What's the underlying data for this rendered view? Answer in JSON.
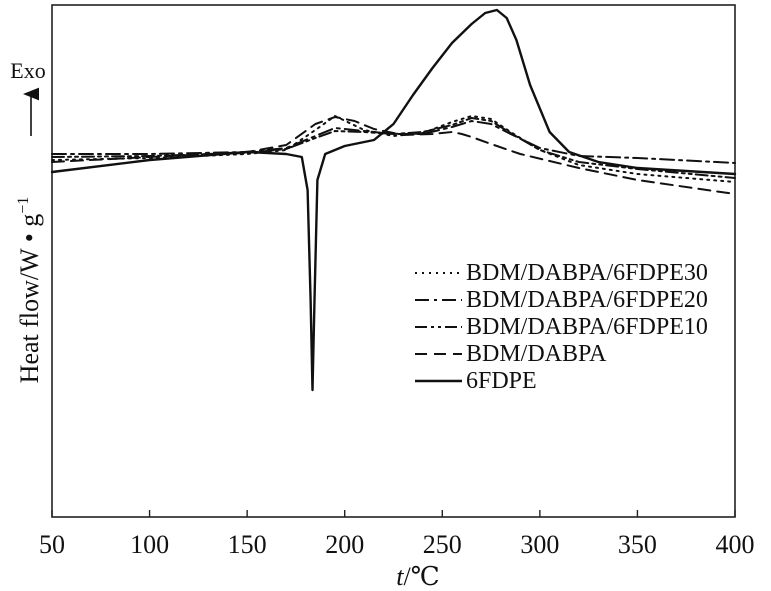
{
  "chart_data": {
    "type": "line",
    "xlabel_italic": "t",
    "xlabel_unit": "/℃",
    "ylabel": "Heat flow/W • g",
    "ylabel_sup": "−1",
    "exo_label": "Exo",
    "xlim": [
      50,
      400
    ],
    "xticks": [
      50,
      100,
      150,
      200,
      250,
      300,
      350,
      400
    ],
    "grid": false,
    "legend_position": "center-right",
    "y_units_note": "arbitrary (heat flow, offset curves; no y tick labels shown)",
    "series": [
      {
        "name": "BDM/DABPA/6FDPE30",
        "style": "dotted",
        "x": [
          50,
          100,
          150,
          170,
          185,
          195,
          210,
          225,
          240,
          255,
          265,
          275,
          285,
          300,
          320,
          350,
          400
        ],
        "y": [
          0.0,
          0.2,
          0.6,
          1.0,
          3.0,
          4.4,
          3.0,
          2.4,
          2.7,
          3.8,
          4.4,
          4.1,
          2.8,
          1.0,
          -0.5,
          -1.4,
          -2.2
        ]
      },
      {
        "name": "BDM/DABPA/6FDPE20",
        "style": "dashdot",
        "x": [
          50,
          100,
          150,
          170,
          185,
          195,
          210,
          225,
          240,
          255,
          265,
          275,
          285,
          300,
          320,
          350,
          400
        ],
        "y": [
          0.6,
          0.6,
          0.8,
          1.2,
          2.4,
          3.2,
          2.9,
          2.6,
          2.6,
          3.3,
          3.9,
          3.6,
          2.6,
          1.2,
          0.4,
          0.2,
          -0.3
        ]
      },
      {
        "name": "BDM/DABPA/6FDPE10",
        "style": "dashdotdot",
        "x": [
          50,
          100,
          150,
          170,
          185,
          195,
          210,
          225,
          240,
          255,
          265,
          275,
          285,
          300,
          320,
          350,
          400
        ],
        "y": [
          0.3,
          0.4,
          0.7,
          1.1,
          2.2,
          2.9,
          2.8,
          2.6,
          2.8,
          3.5,
          4.2,
          3.9,
          2.7,
          1.0,
          -0.2,
          -0.9,
          -1.8
        ]
      },
      {
        "name": "BDM/DABPA",
        "style": "dashed",
        "x": [
          50,
          100,
          150,
          170,
          185,
          195,
          205,
          215,
          230,
          245,
          255,
          260,
          265,
          275,
          290,
          320,
          350,
          400
        ],
        "y": [
          -0.2,
          0.3,
          0.8,
          1.5,
          3.6,
          4.3,
          3.9,
          3.1,
          2.5,
          2.6,
          2.8,
          2.6,
          2.3,
          1.6,
          0.6,
          -0.8,
          -2.0,
          -3.4
        ]
      },
      {
        "name": "6FDPE",
        "style": "solid",
        "x": [
          50,
          100,
          150,
          170,
          178,
          181,
          182.5,
          183.5,
          184.5,
          186,
          190,
          200,
          215,
          225,
          235,
          245,
          255,
          265,
          272,
          278,
          283,
          288,
          295,
          305,
          315,
          330,
          350,
          400
        ],
        "y": [
          -1.2,
          0.0,
          0.8,
          0.6,
          0.3,
          -3.0,
          -14.0,
          -23.0,
          -14.0,
          -2.0,
          0.6,
          1.4,
          2.0,
          3.6,
          6.5,
          9.2,
          11.7,
          13.6,
          14.7,
          15.0,
          14.2,
          12.0,
          7.5,
          2.8,
          0.8,
          -0.2,
          -0.8,
          -1.4
        ]
      }
    ]
  }
}
